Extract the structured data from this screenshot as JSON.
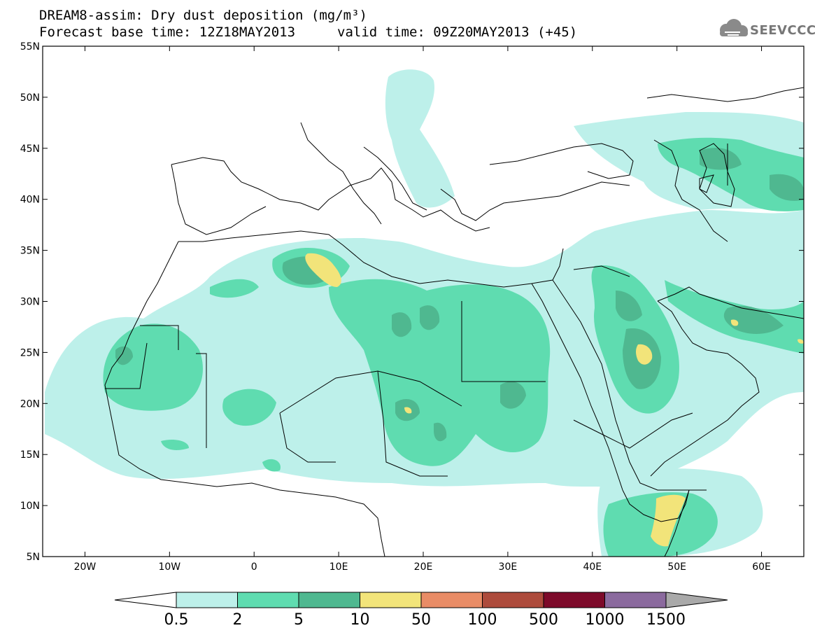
{
  "header": {
    "title_line1": "DREAM8-assim: Dry dust deposition (mg/m³)",
    "base_time": "Forecast base time: 12Z18MAY2013",
    "valid_time": "valid time: 09Z20MAY2013 (+45)"
  },
  "logo": {
    "text": "SEEVCCC",
    "icon": "cloud-icon"
  },
  "map": {
    "projection": "lat-lon",
    "lon_range": [
      -25,
      65
    ],
    "lat_range": [
      5,
      55
    ],
    "lat_labels": [
      "55N",
      "50N",
      "45N",
      "40N",
      "35N",
      "30N",
      "25N",
      "20N",
      "15N",
      "10N",
      "5N"
    ],
    "lon_labels": [
      "20W",
      "10W",
      "0",
      "10E",
      "20E",
      "30E",
      "40E",
      "50E",
      "60E"
    ]
  },
  "legend": {
    "labels": [
      "0.5",
      "2",
      "5",
      "10",
      "50",
      "100",
      "500",
      "1000",
      "1500"
    ],
    "colors": [
      "#bdf0ea",
      "#5fdcb0",
      "#4fb890",
      "#f2e47a",
      "#e98c66",
      "#ad4b3c",
      "#7d0a2a",
      "#8b6a9e",
      "#a9a9a9"
    ]
  }
}
